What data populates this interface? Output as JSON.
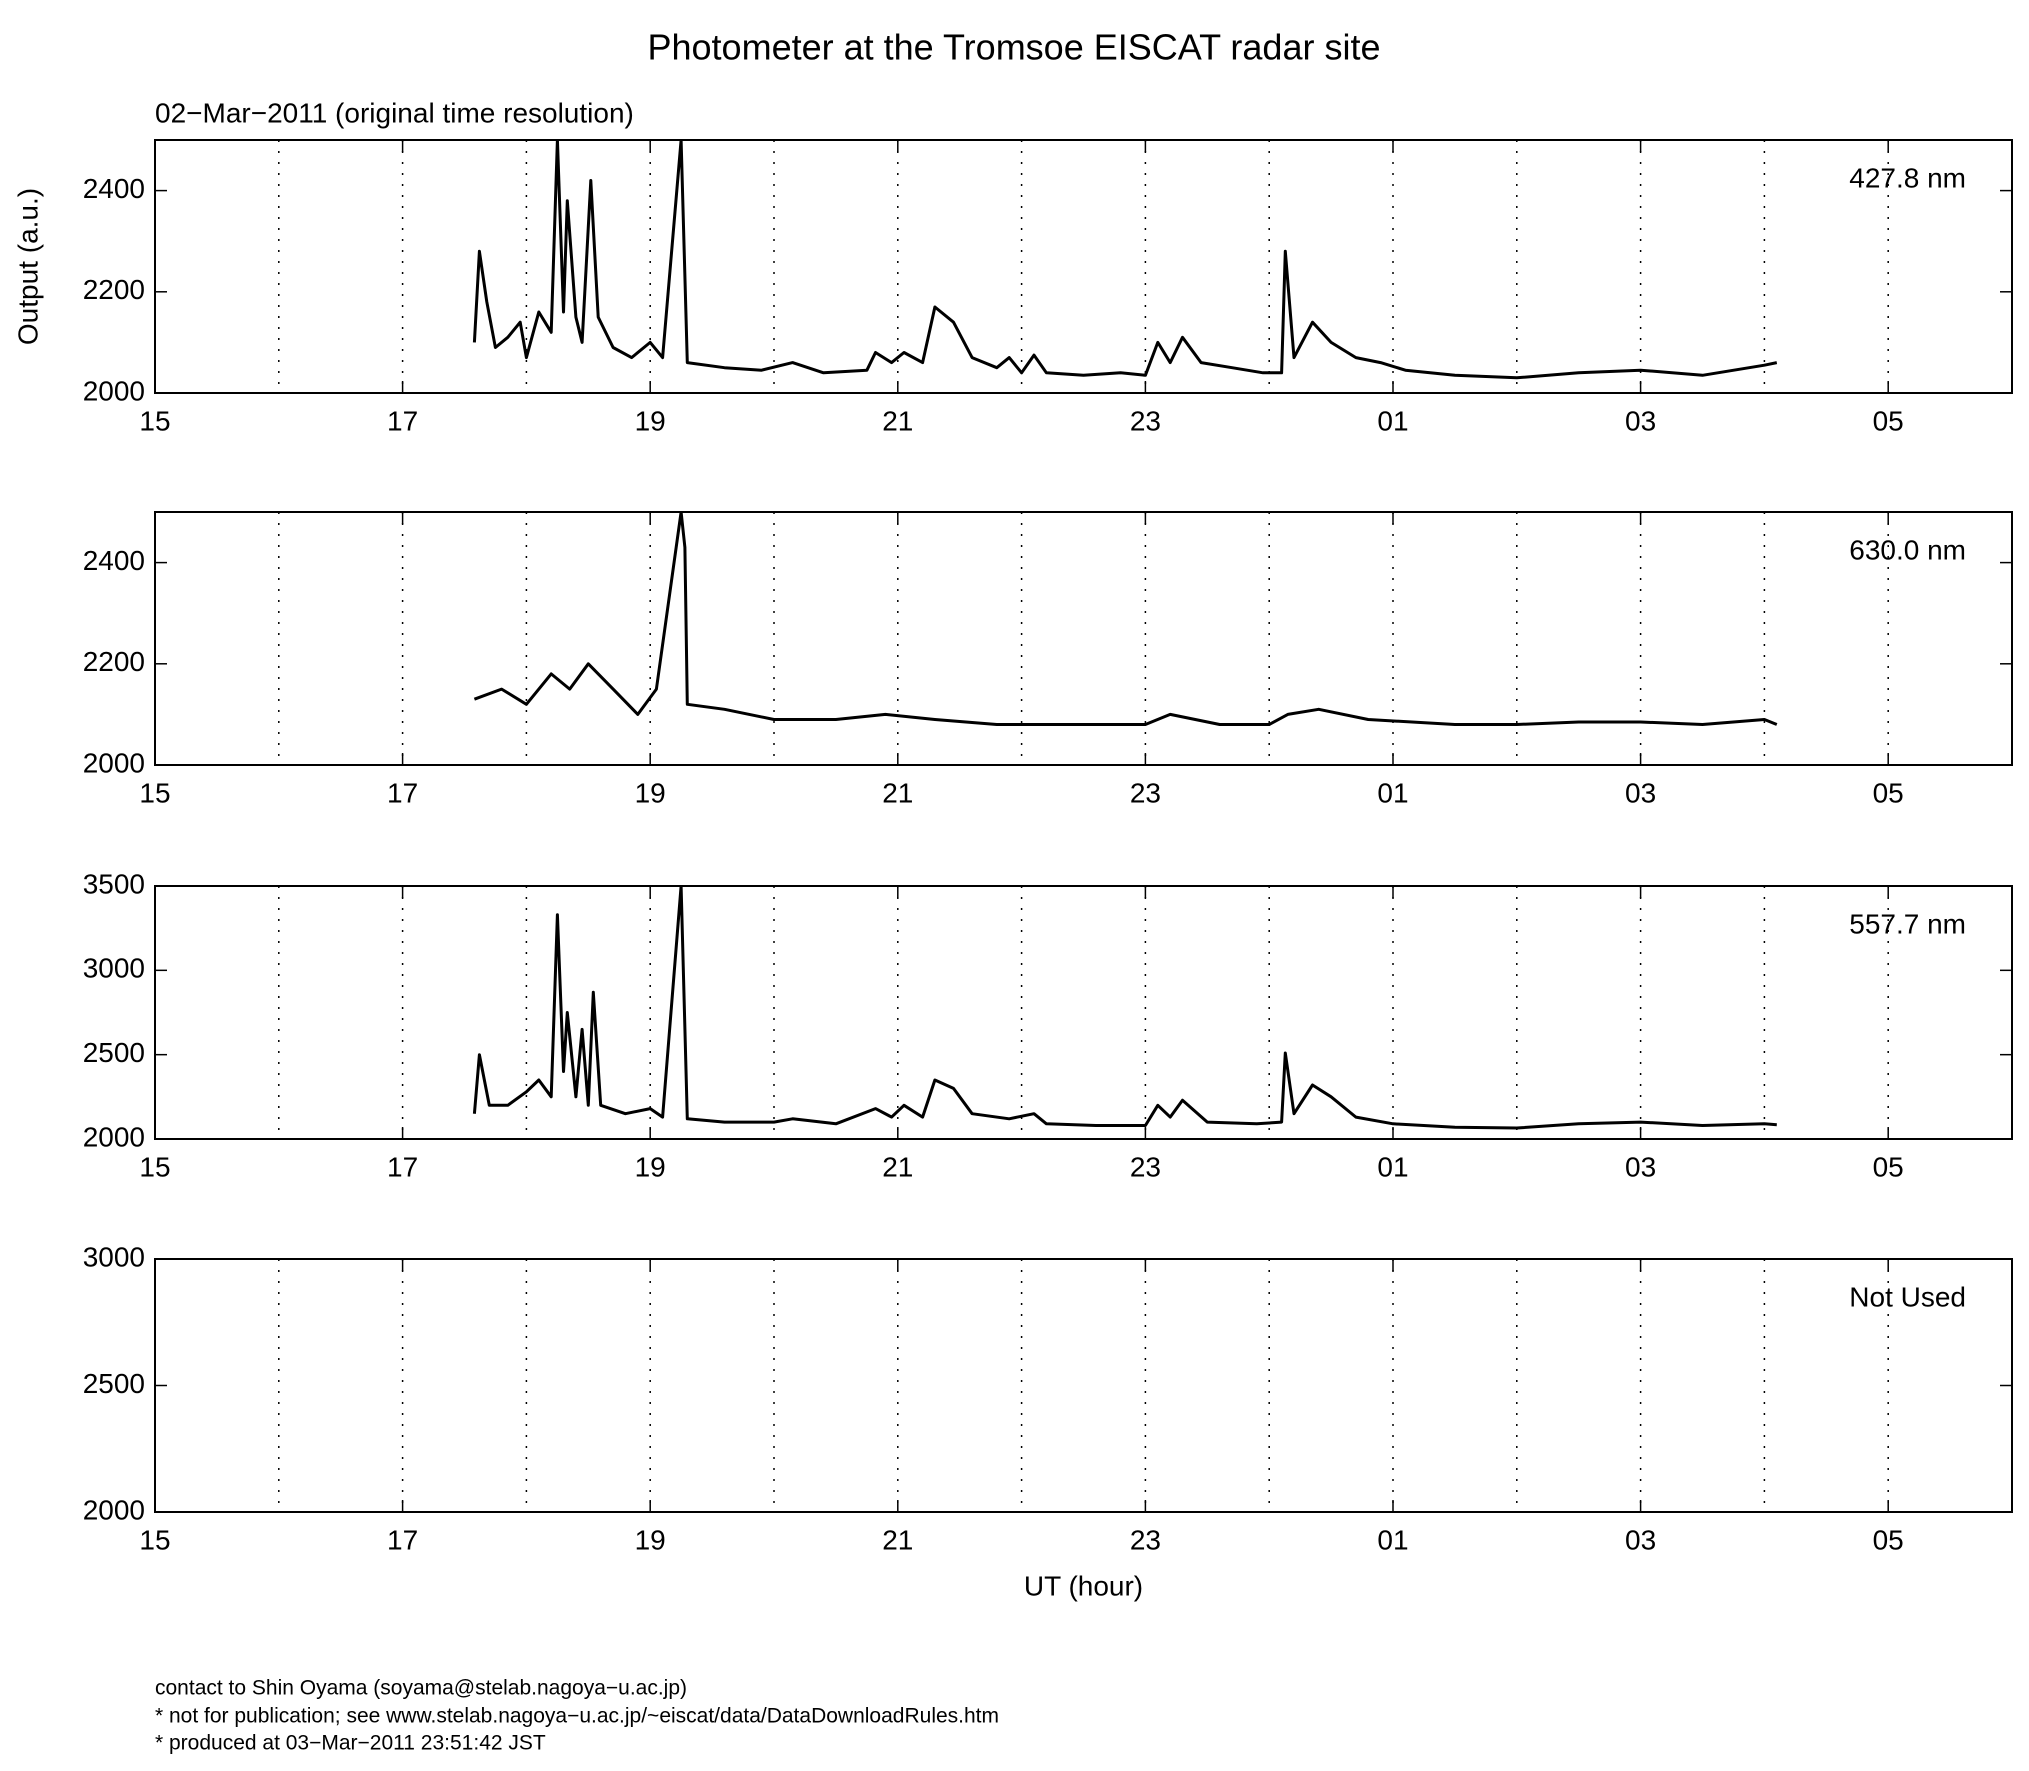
{
  "title": "Photometer at the Tromsoe EISCAT radar site",
  "subtitle": "02−Mar−2011 (original time resolution)",
  "footer": [
    "contact to Shin Oyama (soyama@stelab.nagoya−u.ac.jp)",
    "* not for publication; see www.stelab.nagoya−u.ac.jp/~eiscat/data/DataDownloadRules.htm",
    "* produced at 03−Mar−2011 23:51:42 JST"
  ],
  "chart_data": [
    {
      "type": "line",
      "annotation": "427.8 nm",
      "y_label": "Output (a.u.)",
      "xlim": [
        15,
        30
      ],
      "xticks": [
        15,
        17,
        19,
        21,
        23,
        {
          "value": 25,
          "label": "01"
        },
        {
          "value": 27,
          "label": "03"
        },
        {
          "value": 29,
          "label": "05"
        }
      ],
      "xminor": [
        16,
        18,
        20,
        22,
        24,
        26,
        28
      ],
      "ylim": [
        2000,
        2500
      ],
      "yticks": [
        2000,
        2200,
        2400
      ],
      "x": [
        17.58,
        17.62,
        17.68,
        17.75,
        17.85,
        17.95,
        18.0,
        18.1,
        18.2,
        18.25,
        18.3,
        18.33,
        18.4,
        18.45,
        18.52,
        18.58,
        18.7,
        18.85,
        19.0,
        19.1,
        19.25,
        19.3,
        19.6,
        19.9,
        20.15,
        20.4,
        20.75,
        20.82,
        20.95,
        21.05,
        21.2,
        21.3,
        21.45,
        21.6,
        21.8,
        21.9,
        22.0,
        22.1,
        22.2,
        22.5,
        22.8,
        23.0,
        23.1,
        23.2,
        23.3,
        23.45,
        23.7,
        23.95,
        24.1,
        24.13,
        24.2,
        24.35,
        24.5,
        24.7,
        24.9,
        25.1,
        25.5,
        26.0,
        26.5,
        27.0,
        27.5,
        28.0,
        28.1
      ],
      "series": [
        {
          "color": "#000000",
          "values": [
            2100,
            2280,
            2180,
            2090,
            2110,
            2140,
            2070,
            2160,
            2120,
            2500,
            2160,
            2380,
            2150,
            2100,
            2420,
            2150,
            2090,
            2070,
            2100,
            2070,
            2500,
            2060,
            2050,
            2045,
            2060,
            2040,
            2045,
            2080,
            2060,
            2080,
            2060,
            2170,
            2140,
            2070,
            2050,
            2070,
            2040,
            2075,
            2040,
            2035,
            2040,
            2035,
            2100,
            2060,
            2110,
            2060,
            2050,
            2040,
            2040,
            2280,
            2070,
            2140,
            2100,
            2070,
            2060,
            2045,
            2035,
            2030,
            2040,
            2045,
            2035,
            2055,
            2060
          ]
        }
      ]
    },
    {
      "type": "line",
      "annotation": "630.0 nm",
      "xlim": [
        15,
        30
      ],
      "xticks": [
        15,
        17,
        19,
        21,
        23,
        {
          "value": 25,
          "label": "01"
        },
        {
          "value": 27,
          "label": "03"
        },
        {
          "value": 29,
          "label": "05"
        }
      ],
      "xminor": [
        16,
        18,
        20,
        22,
        24,
        26,
        28
      ],
      "ylim": [
        2000,
        2500
      ],
      "yticks": [
        2000,
        2200,
        2400
      ],
      "x": [
        17.58,
        17.8,
        18.0,
        18.2,
        18.35,
        18.5,
        18.7,
        18.9,
        19.05,
        19.25,
        19.28,
        19.3,
        19.6,
        20.0,
        20.5,
        20.9,
        21.3,
        21.8,
        22.5,
        23.0,
        23.2,
        23.6,
        24.0,
        24.15,
        24.4,
        24.8,
        25.5,
        26.0,
        26.5,
        27.0,
        27.5,
        28.0,
        28.1
      ],
      "series": [
        {
          "color": "#000000",
          "values": [
            2130,
            2150,
            2120,
            2180,
            2150,
            2200,
            2150,
            2100,
            2150,
            2500,
            2430,
            2120,
            2110,
            2090,
            2090,
            2100,
            2090,
            2080,
            2080,
            2080,
            2100,
            2080,
            2080,
            2100,
            2110,
            2090,
            2080,
            2080,
            2085,
            2085,
            2080,
            2090,
            2080
          ]
        }
      ]
    },
    {
      "type": "line",
      "annotation": "557.7 nm",
      "xlim": [
        15,
        30
      ],
      "xticks": [
        15,
        17,
        19,
        21,
        23,
        {
          "value": 25,
          "label": "01"
        },
        {
          "value": 27,
          "label": "03"
        },
        {
          "value": 29,
          "label": "05"
        }
      ],
      "xminor": [
        16,
        18,
        20,
        22,
        24,
        26,
        28
      ],
      "ylim": [
        2000,
        3500
      ],
      "yticks": [
        2000,
        2500,
        3000,
        3500
      ],
      "x": [
        17.58,
        17.62,
        17.7,
        17.85,
        18.0,
        18.1,
        18.2,
        18.25,
        18.3,
        18.33,
        18.4,
        18.45,
        18.5,
        18.54,
        18.6,
        18.8,
        19.0,
        19.1,
        19.25,
        19.3,
        19.6,
        20.0,
        20.15,
        20.5,
        20.82,
        20.95,
        21.05,
        21.2,
        21.3,
        21.45,
        21.6,
        21.9,
        22.1,
        22.2,
        22.6,
        23.0,
        23.1,
        23.2,
        23.3,
        23.5,
        23.9,
        24.1,
        24.13,
        24.2,
        24.35,
        24.5,
        24.7,
        25.0,
        25.5,
        26.0,
        26.5,
        27.0,
        27.5,
        28.0,
        28.1
      ],
      "series": [
        {
          "color": "#000000",
          "values": [
            2150,
            2500,
            2200,
            2200,
            2280,
            2350,
            2250,
            3330,
            2400,
            2750,
            2250,
            2650,
            2200,
            2870,
            2200,
            2150,
            2180,
            2130,
            3500,
            2120,
            2100,
            2100,
            2120,
            2090,
            2180,
            2130,
            2200,
            2130,
            2350,
            2300,
            2150,
            2120,
            2150,
            2090,
            2080,
            2080,
            2200,
            2130,
            2230,
            2100,
            2090,
            2100,
            2510,
            2150,
            2320,
            2250,
            2130,
            2090,
            2070,
            2065,
            2090,
            2100,
            2080,
            2090,
            2085
          ]
        }
      ]
    },
    {
      "type": "line",
      "annotation": "Not Used",
      "x_label": "UT (hour)",
      "xlim": [
        15,
        30
      ],
      "xticks": [
        15,
        17,
        19,
        21,
        23,
        {
          "value": 25,
          "label": "01"
        },
        {
          "value": 27,
          "label": "03"
        },
        {
          "value": 29,
          "label": "05"
        }
      ],
      "xminor": [
        16,
        18,
        20,
        22,
        24,
        26,
        28
      ],
      "ylim": [
        2000,
        3000
      ],
      "yticks": [
        2000,
        2500,
        3000
      ],
      "series": []
    }
  ]
}
